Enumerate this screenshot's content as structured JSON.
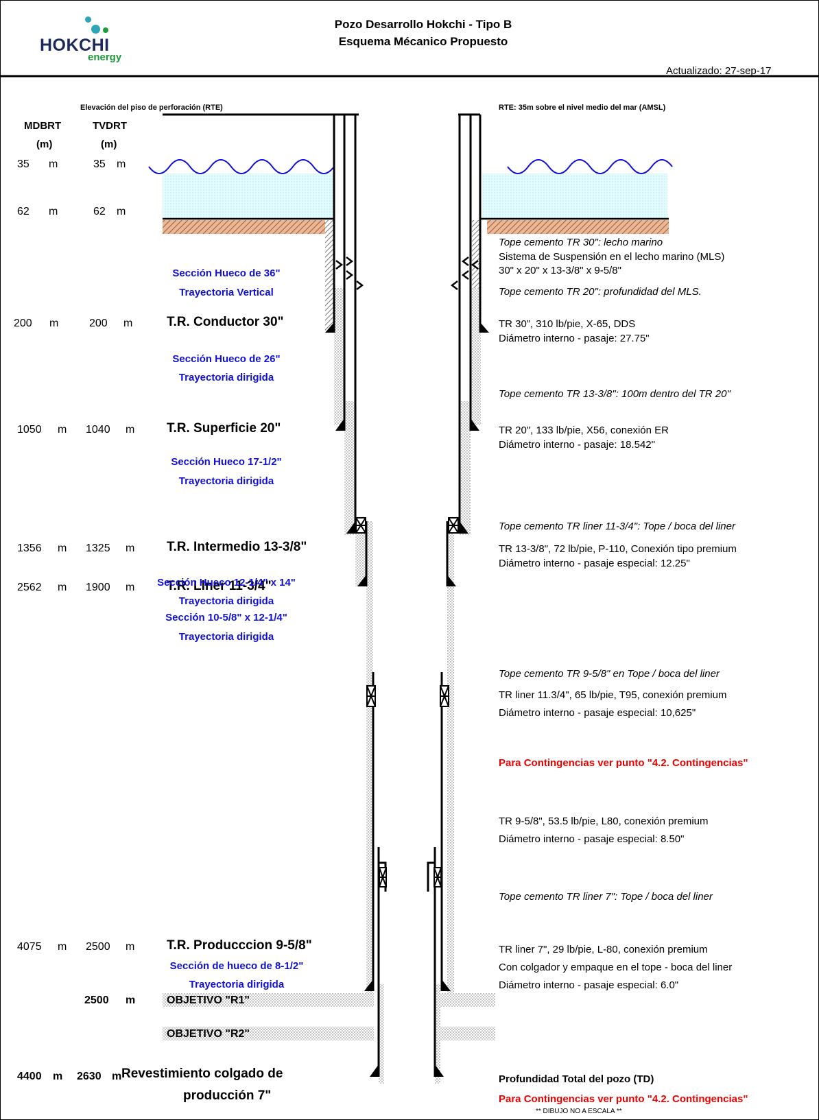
{
  "logo": {
    "name": "HOKCHI",
    "sub": "energy",
    "colors": {
      "navy": "#1b2a5a",
      "green": "#1e9a3a",
      "teal": "#2fa6b8"
    }
  },
  "header": {
    "title": "Pozo Desarrollo Hokchi - Tipo B",
    "subtitle": "Esquema Mécanico Propuesto",
    "updated": "Actualizado: 27-sep-17"
  },
  "labels": {
    "rte_left": "Elevación del piso de perforación (RTE)",
    "rte_right": "RTE: 35m sobre el nivel medio del mar (AMSL)",
    "col_md": "MDBRT",
    "col_tvd": "TVDRT",
    "unit": "(m)"
  },
  "depth_rows": [
    {
      "md": "35",
      "tvd": "35",
      "unit": "m",
      "name": ""
    },
    {
      "md": "62",
      "tvd": "62",
      "unit": "m",
      "name": ""
    },
    {
      "md": "200",
      "tvd": "200",
      "unit": "m",
      "name": "T.R. Conductor 30\""
    },
    {
      "md": "1050",
      "tvd": "1040",
      "unit": "m",
      "name": "T.R. Superficie 20\""
    },
    {
      "md": "1356",
      "tvd": "1325",
      "unit": "m",
      "name": "T.R. Intermedio 13-3/8\""
    },
    {
      "md": "2562",
      "tvd": "1900",
      "unit": "m",
      "name": "T.R. Liner 11-3/4\""
    },
    {
      "md": "4075",
      "tvd": "2500",
      "unit": "m",
      "name": "T.R. Producccion 9-5/8\""
    }
  ],
  "sections": [
    {
      "line1": "Sección Hueco de 36\"",
      "line2": "Trayectoria Vertical"
    },
    {
      "line1": "Sección Hueco de 26\"",
      "line2": "Trayectoria dirigida"
    },
    {
      "line1": "Sección Hueco  17-1/2\"",
      "line2": "Trayectoria dirigida"
    },
    {
      "line1": "Sección Hueco 12-1/4\" x 14\"",
      "line2": "Trayectoria dirigida"
    },
    {
      "line1": "Sección 10-5/8\" x 12-1/4\"",
      "line2": "Trayectoria dirigida"
    },
    {
      "line1": "Sección de hueco de 8-1/2\"",
      "line2": "Trayectoria dirigida"
    }
  ],
  "objectives": [
    {
      "depth": "2500",
      "unit": "m",
      "name": "OBJETIVO \"R1\""
    },
    {
      "depth": "",
      "unit": "",
      "name": "OBJETIVO \"R2\""
    }
  ],
  "final": {
    "md": "4400",
    "tvd": "2630",
    "unit": "m",
    "line1": "Revestimiento colgado de",
    "line2": "producción 7\""
  },
  "notes": {
    "cem30": "Tope cemento TR 30\": lecho marino",
    "mls1": "Sistema de Suspensión en el lecho marino (MLS)",
    "mls2": "30\" x 20\" x 13-3/8\" x 9-5/8\"",
    "cem20": "Tope cemento TR 20\": profundidad del MLS.",
    "tr30a": "TR 30”,  310 lb/pie,  X-65, DDS",
    "tr30b": "Diámetro interno - pasaje: 27.75\"",
    "cem1338": "Tope cemento TR 13-3/8\":  100m dentro del TR 20\"",
    "tr20a": "TR 20\", 133 lb/pie, X56, conexión ER",
    "tr20b": "Diámetro interno - pasaje: 18.542\"",
    "cem1134": "Tope cemento TR liner 11-3/4\":  Tope / boca del liner",
    "tr1338a": "TR 13-3/8\", 72 lb/pie,  P-110,  Conexión  tipo premium",
    "tr1338b": "Diámetro interno - pasaje especial: 12.25\"",
    "cem958": "Tope cemento TR 9-5/8\" en Tope / boca del liner",
    "tr1134a": "TR liner 11.3/4\", 65 lb/pie, T95, conexión premium",
    "tr1134b": "Diámetro interno - pasaje especial: 10,625\"",
    "contingency": "Para Contingencias ver punto \"4.2. Contingencias\"",
    "tr958a": "TR 9-5/8\", 53.5 lb/pie, L80, conexión premium",
    "tr958b": "Diámetro interno - pasaje especial: 8.50\"",
    "cem7": "Tope cemento TR liner 7\":  Tope / boca del liner",
    "tr7a": "TR liner 7\", 29 lb/pie, L-80, conexión premium",
    "tr7b": "Con colgador y empaque en el tope - boca del liner",
    "tr7c": "Diámetro interno - pasaje especial: 6.0\"",
    "td": "Profundidad Total del pozo (TD)",
    "contingency2": "Para Contingencias ver punto \"4.2. Contingencias\"",
    "scale": "** DIBUJO NO A ESCALA **"
  },
  "colors": {
    "water": "#d8f7fa",
    "seabed": "#c87a4a",
    "wave": "#1010d8",
    "cement_dots": "#888888",
    "red_note": "#ee0000",
    "blue_section": "#1010d8"
  }
}
